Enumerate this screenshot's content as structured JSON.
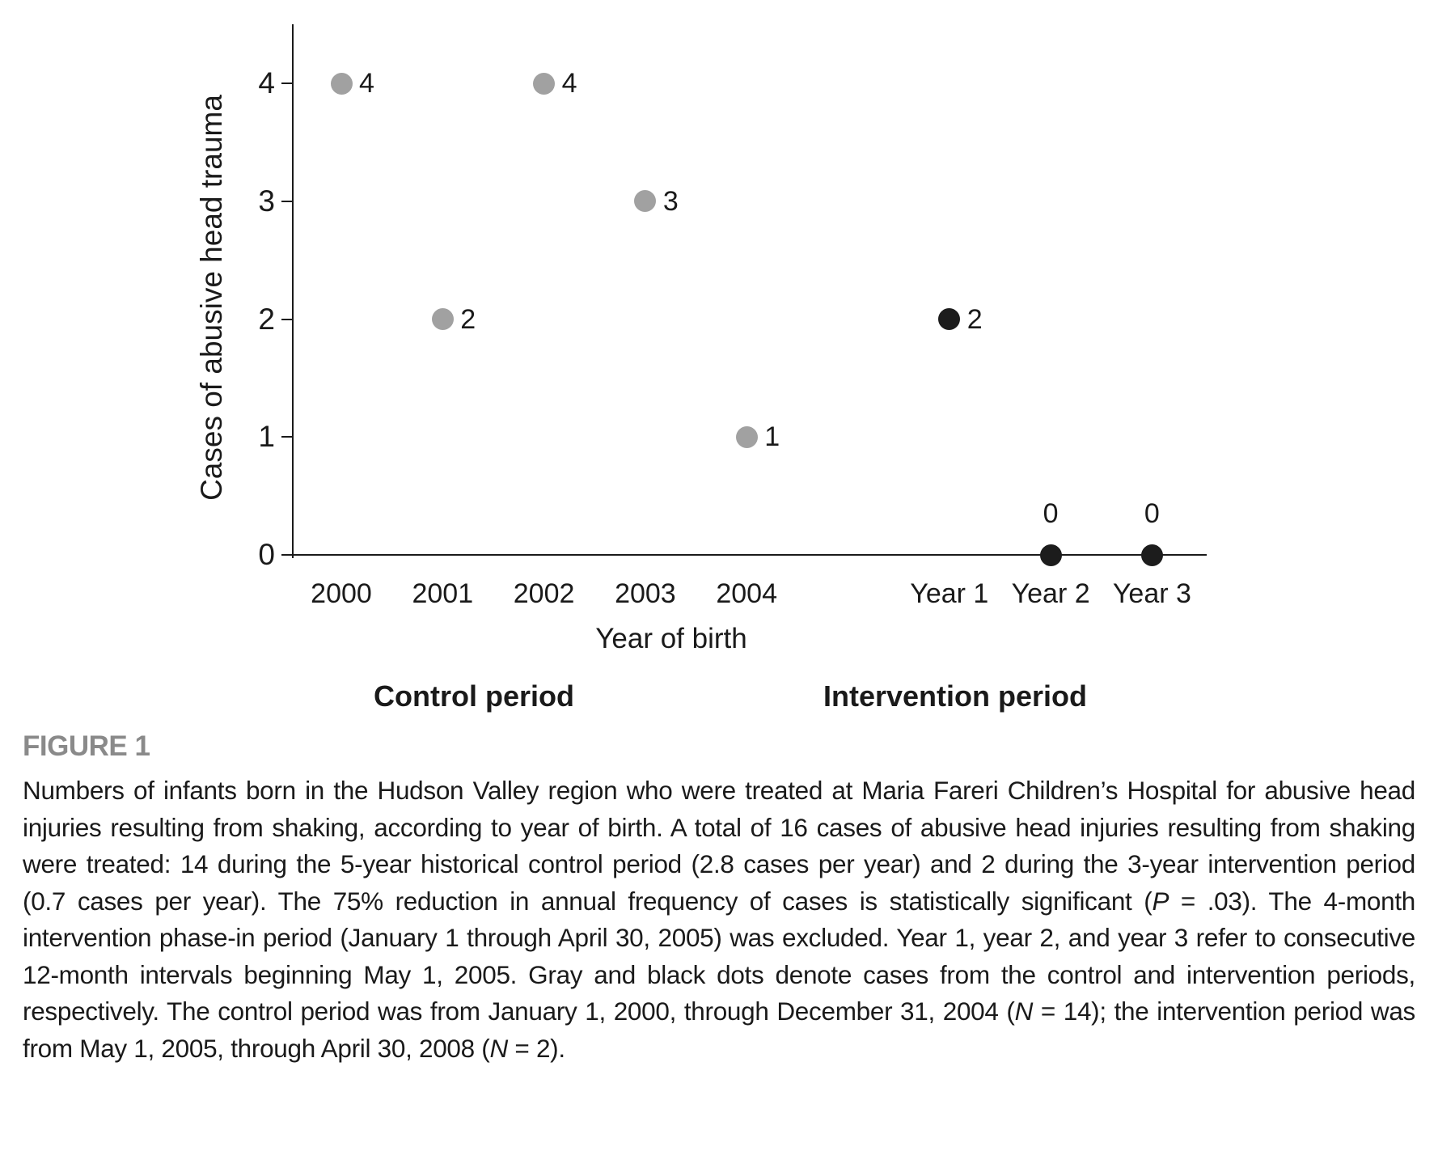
{
  "chart_data": {
    "type": "scatter",
    "title": "",
    "xlabel": "Year of birth",
    "ylabel": "Cases of abusive head trauma",
    "ylim": [
      0,
      4
    ],
    "yticks": [
      0,
      1,
      2,
      3,
      4
    ],
    "categories": [
      "2000",
      "2001",
      "2002",
      "2003",
      "2004",
      "Year 1",
      "Year 2",
      "Year 3"
    ],
    "series": [
      {
        "name": "Control period",
        "categories": [
          "2000",
          "2001",
          "2002",
          "2003",
          "2004"
        ],
        "values": [
          4,
          2,
          4,
          3,
          1
        ],
        "color": "#a1a1a1"
      },
      {
        "name": "Intervention period",
        "categories": [
          "Year 1",
          "Year 2",
          "Year 3"
        ],
        "values": [
          2,
          0,
          0
        ],
        "color": "#1c1c1c"
      }
    ],
    "point_labels": [
      "4",
      "2",
      "4",
      "3",
      "1",
      "2",
      "0",
      "0"
    ],
    "legend_position": "none",
    "grid": false
  },
  "colors": {
    "control_dot": "#a1a1a1",
    "intervention_dot": "#1c1c1c",
    "axis": "#1a1a1a",
    "heading_gray": "#8a8a8a"
  },
  "caption": {
    "heading": "FIGURE 1",
    "segments": [
      {
        "text": "Numbers of infants born in the Hudson Valley region who were treated at Maria Fareri Children’s Hospital for abusive head injuries resulting from shaking, according to year of birth. A total of 16 cases of abusive head injuries resulting from shaking were treated: 14 during the 5-year historical control period (2.8 cases per year) and 2 during the 3-year intervention period (0.7 cases per year). The 75% reduction in annual frequency of cases is statistically significant (",
        "italic": false
      },
      {
        "text": "P",
        "italic": true
      },
      {
        "text": " = .03). The 4-month intervention phase-in period (January 1 through April 30, 2005) was excluded. Year 1, year 2, and year 3 refer to consecutive 12-month intervals beginning May 1, 2005. Gray and black dots denote cases from the control and intervention periods, respectively. The control period was from January 1, 2000, through December 31, 2004 (",
        "italic": false
      },
      {
        "text": "N",
        "italic": true
      },
      {
        "text": " = 14); the intervention period was from May 1, 2005, through April 30, 2008 (",
        "italic": false
      },
      {
        "text": "N",
        "italic": true
      },
      {
        "text": " = 2).",
        "italic": false
      }
    ]
  }
}
